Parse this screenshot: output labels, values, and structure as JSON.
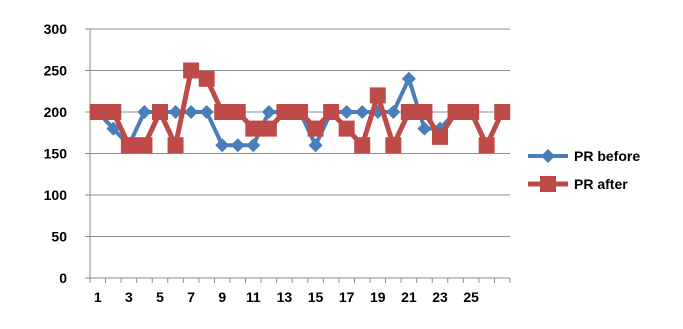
{
  "chart_data": {
    "type": "line",
    "title": "",
    "xlabel": "",
    "ylabel": "",
    "ylim": [
      0,
      300
    ],
    "y_ticks": [
      0,
      50,
      100,
      150,
      200,
      250,
      300
    ],
    "x_tick_labels": [
      "1",
      "3",
      "5",
      "7",
      "9",
      "11",
      "13",
      "15",
      "17",
      "19",
      "21",
      "23",
      "25"
    ],
    "x": [
      1,
      2,
      3,
      4,
      5,
      6,
      7,
      8,
      9,
      10,
      11,
      12,
      13,
      14,
      15,
      16,
      17,
      18,
      19,
      20,
      21,
      22,
      23,
      24,
      25,
      26,
      27
    ],
    "grid": "horizontal",
    "legend_position": "right",
    "series": [
      {
        "name": "PR before",
        "color": "#4a7ebb",
        "marker": "diamond",
        "values": [
          200,
          180,
          160,
          200,
          200,
          200,
          200,
          200,
          160,
          160,
          160,
          200,
          200,
          200,
          160,
          200,
          200,
          200,
          200,
          200,
          240,
          180,
          180,
          200,
          200,
          160,
          200
        ]
      },
      {
        "name": "PR after",
        "color": "#be4b48",
        "marker": "square",
        "values": [
          200,
          200,
          160,
          160,
          200,
          160,
          250,
          240,
          200,
          200,
          180,
          180,
          200,
          200,
          180,
          200,
          180,
          160,
          220,
          160,
          200,
          200,
          170,
          200,
          200,
          160,
          200
        ]
      }
    ]
  }
}
